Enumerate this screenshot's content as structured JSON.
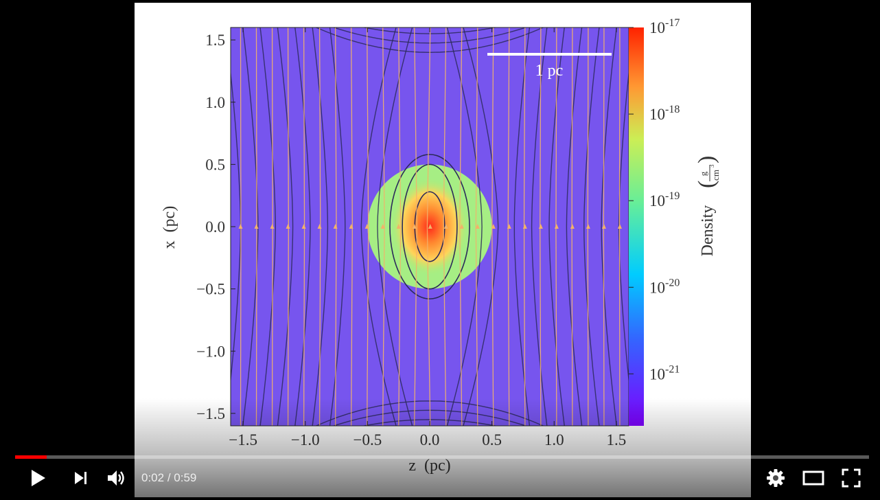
{
  "player": {
    "elapsed": "0:02",
    "separator": "/",
    "duration": "0:59",
    "progress_fraction": 0.037,
    "accent_color": "#ff0000",
    "icons": [
      "play-icon",
      "next-icon",
      "volume-icon",
      "settings-icon",
      "theater-mode-icon",
      "fullscreen-icon"
    ]
  },
  "chart_data": {
    "type": "heatmap",
    "xlabel": "z  (pc)",
    "ylabel": "x  (pc)",
    "x_ticks": [
      "−1.5",
      "−1.0",
      "−0.5",
      "0.0",
      "0.5",
      "1.0",
      "1.5"
    ],
    "y_ticks": [
      "1.5",
      "1.0",
      "0.5",
      "0.0",
      "−0.5",
      "−1.0",
      "−1.5"
    ],
    "xlim": [
      -1.6,
      1.6
    ],
    "ylim": [
      -1.6,
      1.6
    ],
    "colorbar": {
      "label": "Density",
      "unit_numerator": "g",
      "unit_denominator": "cm",
      "unit_exponent": "3",
      "scale": "log",
      "tick_base": "10",
      "tick_exponents": [
        "-17",
        "-18",
        "-19",
        "-20",
        "-21"
      ],
      "range_log10": [
        -21.6,
        -17
      ],
      "colormap": "rainbow",
      "colors": [
        "#7f00ff",
        "#00ccff",
        "#66ee99",
        "#ff9933",
        "#ff2200"
      ]
    },
    "scale_bar": {
      "label": "1 pc",
      "length_pc": 1
    },
    "background_color": "#7755ee",
    "cloud": {
      "center": [
        0.0,
        0.0
      ],
      "radius_pc": 0.5
    },
    "field_line_color": "#f2b26a",
    "streamline_color": "#2b2a5a"
  }
}
